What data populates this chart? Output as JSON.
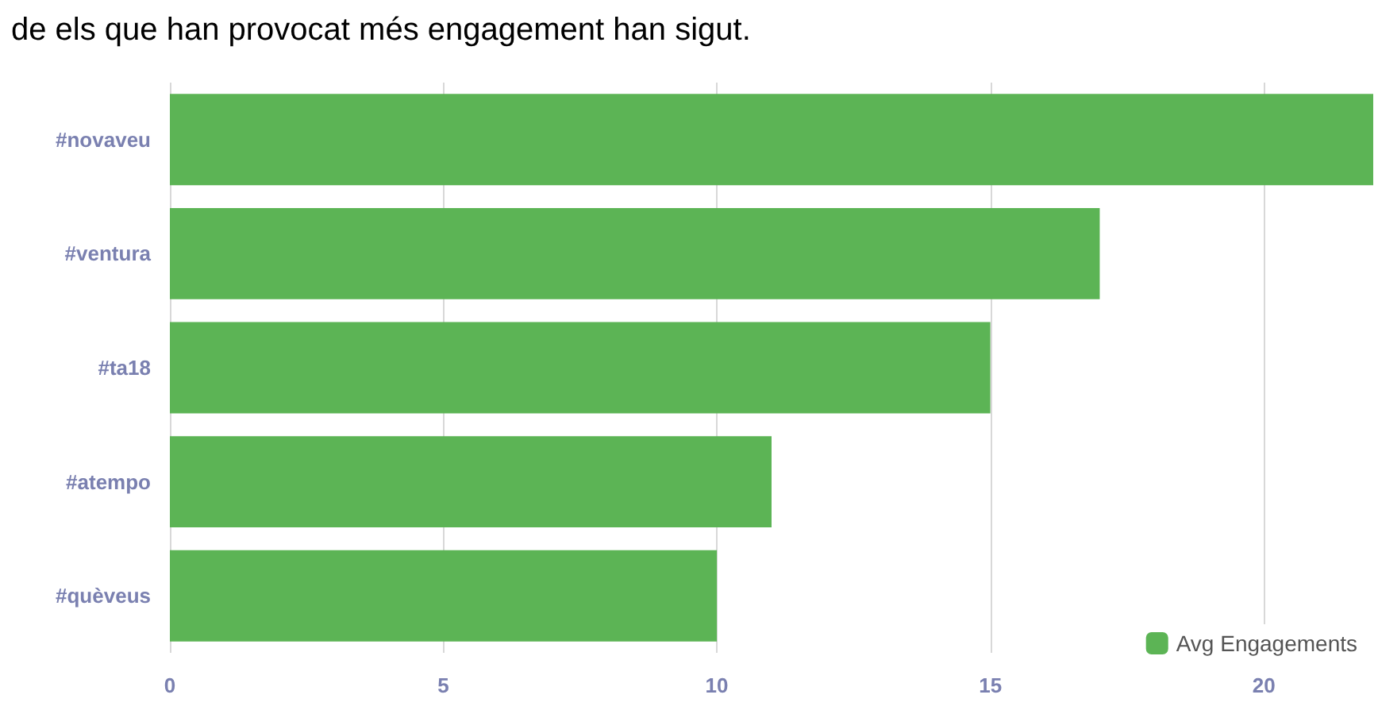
{
  "chart_data": {
    "type": "bar",
    "title": "de els que han provocat més engagement han sigut.",
    "orientation": "horizontal",
    "categories": [
      "#novaveu",
      "#ventura",
      "#ta18",
      "#atempo",
      "#quèveus"
    ],
    "series": [
      {
        "name": "Avg Engagements",
        "color": "#5cb455",
        "values": [
          22,
          17,
          15,
          11,
          10
        ]
      }
    ],
    "xlim": [
      0,
      22
    ],
    "xticks": [
      0,
      5,
      10,
      15,
      20
    ],
    "grid": "x",
    "legend": "bottom right"
  }
}
